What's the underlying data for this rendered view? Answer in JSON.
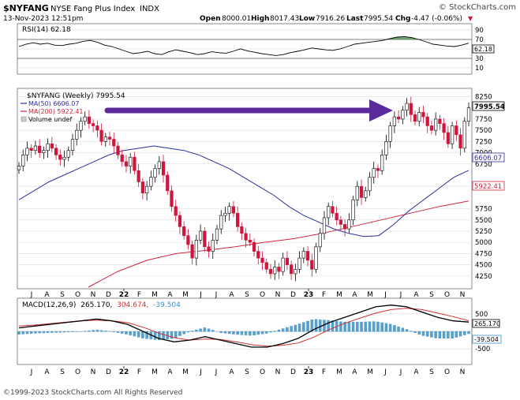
{
  "header": {
    "symbol": "$NYFANG",
    "name": "NYSE Fang Plus Index",
    "exchange": "INDX",
    "brand": "© StockCharts.com",
    "date": "13-Nov-2023 12:51pm",
    "open_label": "Open",
    "open": "8000.01",
    "high_label": "High",
    "high": "8017.43",
    "low_label": "Low",
    "low": "7916.26",
    "last_label": "Last",
    "last": "7995.54",
    "chg_label": "Chg",
    "chg": "-4.47 (-0.06%)",
    "chg_arrow": "▼"
  },
  "rsi_panel": {
    "label": "RSI(14) 62.18",
    "current": 62.18,
    "current_label": "62.18",
    "overbought": 70,
    "oversold": 30,
    "ticks": [
      "90",
      "70",
      "50",
      "30",
      "10"
    ]
  },
  "price_panel": {
    "legend_symbol": "$NYFANG (Weekly) 7995.54",
    "legend_ma50": "MA(50) 6606.07",
    "legend_ma200": "MA(200) 5922.41",
    "legend_volume": "Volume undef",
    "last_tag": "7995.54",
    "ma50_tag": "6606.07",
    "ma200_tag": "5922.41",
    "ticks": [
      "8250",
      "7750",
      "7500",
      "7250",
      "7000",
      "6750",
      "6250",
      "5750",
      "5500",
      "5250",
      "5000",
      "4750",
      "4500",
      "4250"
    ]
  },
  "macd_panel": {
    "label_prefix": "MACD(12,26,9)",
    "macd_value": "265.170,",
    "signal_value": "304.674,",
    "hist_value": "-39.504",
    "macd_tag": "265.170",
    "hist_tag": "-39.504",
    "ticks": [
      "500",
      "-500"
    ]
  },
  "x_axis": {
    "labels": [
      "J",
      "A",
      "S",
      "O",
      "N",
      "D",
      "22",
      "F",
      "M",
      "A",
      "M",
      "J",
      "J",
      "A",
      "S",
      "O",
      "N",
      "D",
      "23",
      "F",
      "M",
      "A",
      "M",
      "J",
      "J",
      "A",
      "S",
      "O",
      "N"
    ]
  },
  "footer": {
    "copyright": "©1999-2023 StockCharts.com All Rights Reserved"
  },
  "colors": {
    "up_candle": "#ffffff",
    "down_candle": "#d0143c",
    "ma50": "#2a2f9e",
    "ma200": "#d0263c",
    "arrow": "#5b2a9a",
    "macd_line": "#000000",
    "signal_line": "#d23030",
    "histogram": "#3a8fc4",
    "rsi_fill": "#3d8c3d"
  },
  "chart_data": {
    "type": "candlestick",
    "title": "$NYFANG NYSE Fang Plus Index INDX",
    "interval": "Weekly",
    "date_range": [
      "2021-07",
      "2023-11"
    ],
    "price_ylim": [
      4000,
      8400
    ],
    "weekly_close_approx": [
      6700,
      6950,
      7100,
      7050,
      7150,
      7000,
      7050,
      7200,
      7100,
      6950,
      6850,
      6900,
      7050,
      7300,
      7500,
      7700,
      7800,
      7650,
      7600,
      7500,
      7250,
      7350,
      7300,
      7150,
      6950,
      6800,
      6700,
      6900,
      6600,
      6350,
      6100,
      6250,
      6450,
      6650,
      6800,
      6500,
      6150,
      5800,
      5600,
      5350,
      5150,
      4950,
      4650,
      5050,
      5250,
      4900,
      4800,
      5050,
      5300,
      5600,
      5650,
      5800,
      5650,
      5350,
      5200,
      5050,
      5000,
      4800,
      4650,
      4550,
      4400,
      4300,
      4450,
      4350,
      4650,
      4500,
      4300,
      4400,
      4650,
      4800,
      4600,
      4400,
      4900,
      5200,
      5550,
      5800,
      5650,
      5500,
      5400,
      5300,
      5500,
      5950,
      6250,
      6000,
      6150,
      6450,
      6650,
      6600,
      6950,
      7250,
      7600,
      7800,
      7750,
      7950,
      8100,
      7850,
      7700,
      7900,
      7800,
      7600,
      7500,
      7750,
      7650,
      7450,
      7200,
      7600,
      7400,
      7100,
      7700,
      8000
    ],
    "ma50_approx": [
      5950,
      6150,
      6350,
      6500,
      6650,
      6800,
      6950,
      7050,
      7100,
      7150,
      7100,
      7050,
      6950,
      6800,
      6650,
      6450,
      6250,
      6050,
      5800,
      5600,
      5450,
      5300,
      5200,
      5130,
      5150,
      5400,
      5700,
      5950,
      6200,
      6450,
      6606.07
    ],
    "ma200_approx": [
      4000,
      4350,
      4600,
      4750,
      4820,
      4900,
      5000,
      5080,
      5200,
      5350,
      5500,
      5650,
      5800,
      5922.41
    ],
    "rsi_approx": [
      55,
      60,
      63,
      60,
      62,
      58,
      57,
      60,
      62,
      66,
      68,
      64,
      58,
      55,
      50,
      45,
      40,
      42,
      45,
      40,
      38,
      44,
      48,
      45,
      42,
      38,
      40,
      44,
      42,
      41,
      45,
      50,
      46,
      43,
      40,
      38,
      36,
      38,
      42,
      45,
      48,
      52,
      50,
      48,
      47,
      50,
      55,
      60,
      62,
      64,
      66,
      68,
      72,
      75,
      76,
      74,
      70,
      65,
      60,
      58,
      56,
      55,
      58,
      62.18
    ],
    "macd_approx": [
      100,
      150,
      200,
      250,
      300,
      350,
      300,
      200,
      0,
      -200,
      -300,
      -250,
      -150,
      -250,
      -350,
      -450,
      -450,
      -350,
      -200,
      50,
      250,
      400,
      550,
      700,
      750,
      700,
      550,
      400,
      300,
      265.17
    ],
    "signal_approx": [
      150,
      180,
      220,
      260,
      300,
      320,
      300,
      250,
      120,
      -50,
      -180,
      -250,
      -220,
      -230,
      -300,
      -380,
      -420,
      -400,
      -330,
      -170,
      50,
      230,
      380,
      520,
      620,
      660,
      620,
      520,
      420,
      304.674
    ]
  }
}
